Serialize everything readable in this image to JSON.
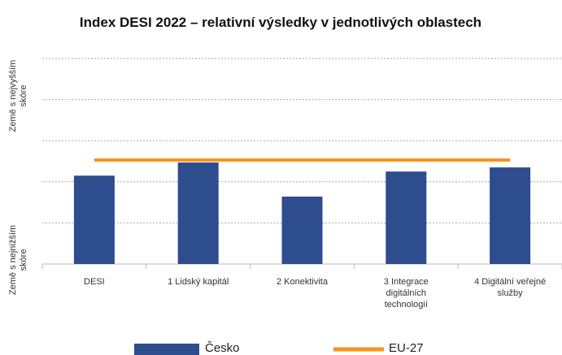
{
  "chart_data": {
    "type": "bar",
    "title": "Index DESI 2022 – relativní výsledky v jednotlivých oblastech",
    "y_label_top": "Země s nejvyšším skóre",
    "y_label_bottom": "Země s nejnižším skóre",
    "categories": [
      "DESI",
      "1 Lidský kapitál",
      "2 Konektivita",
      "3 Integrace digitálních technologií",
      "4 Digitální veřejné služby"
    ],
    "series": [
      {
        "name": "Česko",
        "type": "bar",
        "color": "#2e4d8f",
        "values": [
          2.15,
          2.47,
          1.64,
          2.25,
          2.35
        ]
      },
      {
        "name": "EU-27",
        "type": "line",
        "color": "#f7941d",
        "values": [
          2.53,
          2.53,
          2.53,
          2.53,
          2.53
        ]
      }
    ],
    "ylim": [
      0,
      5
    ],
    "yticks": [
      0,
      1,
      2,
      3,
      4,
      5
    ],
    "grid": true
  }
}
